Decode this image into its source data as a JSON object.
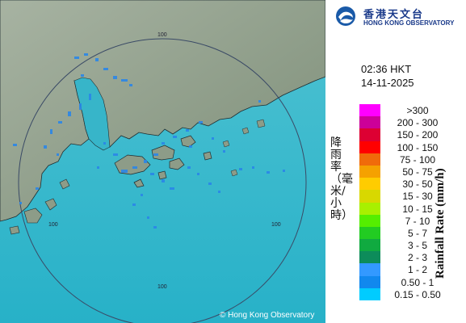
{
  "header": {
    "logo_chinese": "香港天文台",
    "logo_english": "HONG KONG OBSERVATORY"
  },
  "timestamp": {
    "time": "02:36 HKT",
    "date": "14-11-2025"
  },
  "legend": {
    "title_chinese": "降雨率（毫米/小時）",
    "title_english": "Rainfall Rate (mm/h)",
    "items": [
      {
        "label": ">300",
        "color": "#ff00ff"
      },
      {
        "label": "200 - 300",
        "color": "#cc0099"
      },
      {
        "label": "150 - 200",
        "color": "#dd0033"
      },
      {
        "label": "100 - 150",
        "color": "#ff0000"
      },
      {
        "label": "75 - 100",
        "color": "#f06b0a"
      },
      {
        "label": "50 - 75",
        "color": "#f5a100"
      },
      {
        "label": "30 - 50",
        "color": "#ffcc00"
      },
      {
        "label": "15 - 30",
        "color": "#d8d800"
      },
      {
        "label": "10 - 15",
        "color": "#a8f000"
      },
      {
        "label": "7 - 10",
        "color": "#55ee00"
      },
      {
        "label": "5 - 7",
        "color": "#22cc22"
      },
      {
        "label": "3 - 5",
        "color": "#10aa40"
      },
      {
        "label": "2 - 3",
        "color": "#0d8c5a"
      },
      {
        "label": "1 - 2",
        "color": "#3399ff"
      },
      {
        "label": "0.50 - 1",
        "color": "#1188ee"
      },
      {
        "label": "0.15 - 0.50",
        "color": "#00ccff"
      }
    ]
  },
  "map": {
    "range_rings": [
      "100",
      "100",
      "100",
      "100"
    ],
    "copyright": "© Hong Kong Observatory",
    "colors": {
      "land": "#8a9a86",
      "sea": "#34b7cc",
      "echo": "#2a86e8",
      "ring": "#3a4a66"
    }
  }
}
